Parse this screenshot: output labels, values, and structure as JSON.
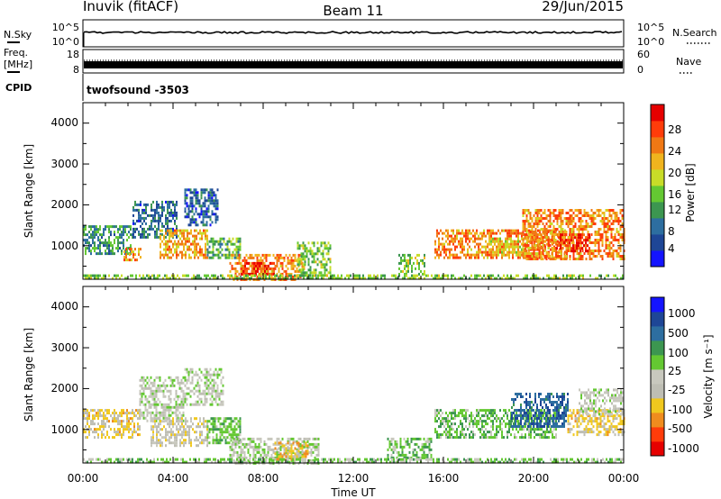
{
  "header": {
    "station": "Inuvik (fitACF)",
    "beam": "Beam 11",
    "date": "29/Jun/2015"
  },
  "top_panels": {
    "nsky_label": "N.Sky",
    "nsky_ticks": [
      "10^5",
      "10^0"
    ],
    "nsearch_label": "N.Search",
    "nsearch_ticks": [
      "10^5",
      "10^0"
    ],
    "freq_label_1": "Freq.",
    "freq_label_2": "[MHz]",
    "freq_ticks": [
      "18",
      "8"
    ],
    "nave_label": "Nave",
    "nave_ticks": [
      "60",
      "0"
    ],
    "cpid_label": "CPID",
    "cpid_value": "twofsound -3503"
  },
  "colors": {
    "power_scale": [
      "#1414ff",
      "#1e4696",
      "#2d6ea0",
      "#3c9650",
      "#64c832",
      "#c8dc28",
      "#f0b41e",
      "#f07814",
      "#ff3c0a",
      "#e60000"
    ],
    "velocity_scale": [
      "#e60000",
      "#ff3c0a",
      "#f08c1e",
      "#f0c81e",
      "#bebeb4",
      "#c8c8be",
      "#64c832",
      "#3c9650",
      "#2d6ea0",
      "#1e4696",
      "#1414ff"
    ]
  },
  "chart_data": [
    {
      "type": "heatmap",
      "panel": "power",
      "xlabel": "Time UT",
      "ylabel": "Slant Range [km]",
      "xlim": [
        0,
        24
      ],
      "ylim": [
        180,
        4500
      ],
      "x_ticks": [
        "00:00",
        "04:00",
        "08:00",
        "12:00",
        "16:00",
        "20:00",
        "00:00"
      ],
      "y_ticks": [
        "1000",
        "2000",
        "3000",
        "4000"
      ],
      "colorbar_label": "Power [dB]",
      "colorbar_ticks": [
        "28",
        "24",
        "20",
        "16",
        "12",
        "8",
        "4"
      ],
      "colorbar_range": [
        0,
        30
      ],
      "regions": [
        {
          "t": [
            0.0,
            2.2
          ],
          "r": [
            800,
            1500
          ],
          "value": 10
        },
        {
          "t": [
            1.8,
            2.6
          ],
          "r": [
            650,
            950
          ],
          "value": 22
        },
        {
          "t": [
            2.2,
            4.2
          ],
          "r": [
            1200,
            2100
          ],
          "value": 7
        },
        {
          "t": [
            3.4,
            5.5
          ],
          "r": [
            700,
            1400
          ],
          "value": 20
        },
        {
          "t": [
            4.5,
            6.0
          ],
          "r": [
            1500,
            2400
          ],
          "value": 6
        },
        {
          "t": [
            5.5,
            7.0
          ],
          "r": [
            700,
            1200
          ],
          "value": 12
        },
        {
          "t": [
            6.5,
            9.8
          ],
          "r": [
            200,
            800
          ],
          "value": 22
        },
        {
          "t": [
            7.0,
            8.5
          ],
          "r": [
            300,
            600
          ],
          "value": 26
        },
        {
          "t": [
            9.5,
            11.0
          ],
          "r": [
            300,
            1100
          ],
          "value": 14
        },
        {
          "t": [
            14.0,
            15.2
          ],
          "r": [
            300,
            800
          ],
          "value": 14
        },
        {
          "t": [
            15.6,
            21.5
          ],
          "r": [
            700,
            1400
          ],
          "value": 22
        },
        {
          "t": [
            18.0,
            19.5
          ],
          "r": [
            800,
            1200
          ],
          "value": 18
        },
        {
          "t": [
            19.5,
            24.0
          ],
          "r": [
            700,
            1900
          ],
          "value": 22
        },
        {
          "t": [
            21.0,
            22.5
          ],
          "r": [
            900,
            1300
          ],
          "value": 27
        },
        {
          "t": [
            0.0,
            24.0
          ],
          "r": [
            180,
            300
          ],
          "value": 14
        }
      ]
    },
    {
      "type": "heatmap",
      "panel": "velocity",
      "xlabel": "Time UT",
      "ylabel": "Slant Range [km]",
      "xlim": [
        0,
        24
      ],
      "ylim": [
        180,
        4500
      ],
      "x_ticks": [
        "00:00",
        "04:00",
        "08:00",
        "12:00",
        "16:00",
        "20:00",
        "00:00"
      ],
      "y_ticks": [
        "1000",
        "2000",
        "3000",
        "4000"
      ],
      "colorbar_label": "Velocity [m s⁻¹]",
      "colorbar_ticks": [
        "1000",
        "500",
        "100",
        "25",
        "-25",
        "-100",
        "-500",
        "-1000"
      ],
      "colorbar_range": [
        -1000,
        1000
      ],
      "regions": [
        {
          "t": [
            0.0,
            2.5
          ],
          "r": [
            800,
            1500
          ],
          "value": -300
        },
        {
          "t": [
            2.5,
            4.5
          ],
          "r": [
            1200,
            2300
          ],
          "value": 0
        },
        {
          "t": [
            3.0,
            5.5
          ],
          "r": [
            600,
            1300
          ],
          "value": -150
        },
        {
          "t": [
            4.5,
            6.2
          ],
          "r": [
            1600,
            2500
          ],
          "value": 0
        },
        {
          "t": [
            5.5,
            7.0
          ],
          "r": [
            700,
            1300
          ],
          "value": 200
        },
        {
          "t": [
            6.5,
            10.5
          ],
          "r": [
            200,
            800
          ],
          "value": 0
        },
        {
          "t": [
            8.5,
            10.0
          ],
          "r": [
            300,
            700
          ],
          "value": -400
        },
        {
          "t": [
            13.5,
            15.5
          ],
          "r": [
            300,
            800
          ],
          "value": 200
        },
        {
          "t": [
            15.6,
            21.0
          ],
          "r": [
            800,
            1500
          ],
          "value": 200
        },
        {
          "t": [
            19.0,
            21.5
          ],
          "r": [
            1100,
            1900
          ],
          "value": 600
        },
        {
          "t": [
            21.5,
            24.0
          ],
          "r": [
            900,
            1500
          ],
          "value": -300
        },
        {
          "t": [
            22.0,
            24.0
          ],
          "r": [
            1400,
            2000
          ],
          "value": 0
        },
        {
          "t": [
            0.0,
            24.0
          ],
          "r": [
            180,
            300
          ],
          "value": 150
        }
      ]
    }
  ]
}
